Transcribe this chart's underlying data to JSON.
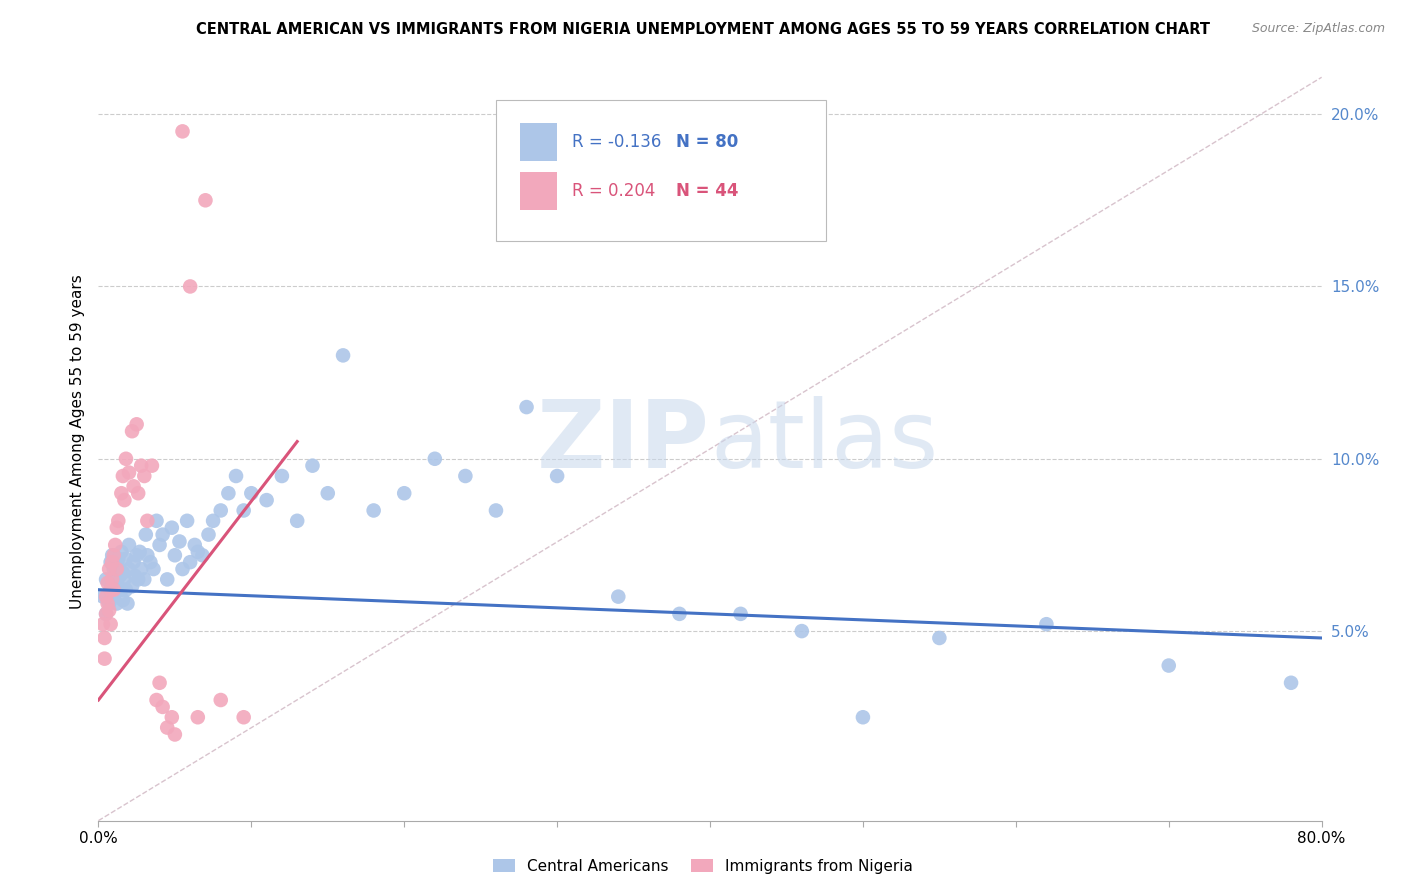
{
  "title": "CENTRAL AMERICAN VS IMMIGRANTS FROM NIGERIA UNEMPLOYMENT AMONG AGES 55 TO 59 YEARS CORRELATION CHART",
  "source": "Source: ZipAtlas.com",
  "ylabel": "Unemployment Among Ages 55 to 59 years",
  "right_yticks": [
    "5.0%",
    "10.0%",
    "15.0%",
    "20.0%"
  ],
  "right_ytick_vals": [
    0.05,
    0.1,
    0.15,
    0.2
  ],
  "xlim": [
    0.0,
    0.8
  ],
  "ylim": [
    -0.005,
    0.215
  ],
  "blue_R": "-0.136",
  "blue_N": "80",
  "pink_R": "0.204",
  "pink_N": "44",
  "blue_color": "#adc6e8",
  "pink_color": "#f2a8bc",
  "blue_line_color": "#4472c4",
  "pink_line_color": "#d9547a",
  "diagonal_color": "#d4bdc8",
  "watermark_zip": "ZIP",
  "watermark_atlas": "atlas",
  "legend_label_blue": "Central Americans",
  "legend_label_pink": "Immigrants from Nigeria",
  "blue_x": [
    0.003,
    0.005,
    0.005,
    0.007,
    0.008,
    0.008,
    0.009,
    0.009,
    0.01,
    0.01,
    0.011,
    0.012,
    0.012,
    0.013,
    0.013,
    0.014,
    0.015,
    0.015,
    0.016,
    0.016,
    0.017,
    0.018,
    0.018,
    0.019,
    0.02,
    0.02,
    0.022,
    0.023,
    0.024,
    0.025,
    0.026,
    0.027,
    0.028,
    0.03,
    0.031,
    0.032,
    0.034,
    0.036,
    0.038,
    0.04,
    0.042,
    0.045,
    0.048,
    0.05,
    0.053,
    0.055,
    0.058,
    0.06,
    0.063,
    0.065,
    0.068,
    0.072,
    0.075,
    0.08,
    0.085,
    0.09,
    0.095,
    0.1,
    0.11,
    0.12,
    0.13,
    0.14,
    0.15,
    0.16,
    0.18,
    0.2,
    0.22,
    0.24,
    0.26,
    0.28,
    0.3,
    0.34,
    0.38,
    0.42,
    0.46,
    0.5,
    0.55,
    0.62,
    0.7,
    0.78
  ],
  "blue_y": [
    0.06,
    0.055,
    0.065,
    0.058,
    0.07,
    0.062,
    0.065,
    0.072,
    0.06,
    0.068,
    0.064,
    0.07,
    0.058,
    0.063,
    0.071,
    0.066,
    0.062,
    0.073,
    0.059,
    0.067,
    0.065,
    0.062,
    0.071,
    0.058,
    0.068,
    0.075,
    0.063,
    0.07,
    0.066,
    0.072,
    0.065,
    0.073,
    0.068,
    0.065,
    0.078,
    0.072,
    0.07,
    0.068,
    0.082,
    0.075,
    0.078,
    0.065,
    0.08,
    0.072,
    0.076,
    0.068,
    0.082,
    0.07,
    0.075,
    0.073,
    0.072,
    0.078,
    0.082,
    0.085,
    0.09,
    0.095,
    0.085,
    0.09,
    0.088,
    0.095,
    0.082,
    0.098,
    0.09,
    0.13,
    0.085,
    0.09,
    0.1,
    0.095,
    0.085,
    0.115,
    0.095,
    0.06,
    0.055,
    0.055,
    0.05,
    0.025,
    0.048,
    0.052,
    0.04,
    0.035
  ],
  "pink_x": [
    0.003,
    0.004,
    0.004,
    0.005,
    0.005,
    0.006,
    0.006,
    0.007,
    0.007,
    0.008,
    0.008,
    0.009,
    0.009,
    0.01,
    0.01,
    0.011,
    0.012,
    0.012,
    0.013,
    0.015,
    0.016,
    0.017,
    0.018,
    0.02,
    0.022,
    0.023,
    0.025,
    0.026,
    0.028,
    0.03,
    0.032,
    0.035,
    0.038,
    0.04,
    0.042,
    0.045,
    0.048,
    0.05,
    0.055,
    0.06,
    0.065,
    0.07,
    0.08,
    0.095
  ],
  "pink_y": [
    0.052,
    0.048,
    0.042,
    0.06,
    0.055,
    0.058,
    0.064,
    0.068,
    0.056,
    0.062,
    0.052,
    0.07,
    0.065,
    0.072,
    0.062,
    0.075,
    0.08,
    0.068,
    0.082,
    0.09,
    0.095,
    0.088,
    0.1,
    0.096,
    0.108,
    0.092,
    0.11,
    0.09,
    0.098,
    0.095,
    0.082,
    0.098,
    0.03,
    0.035,
    0.028,
    0.022,
    0.025,
    0.02,
    0.195,
    0.15,
    0.025,
    0.175,
    0.03,
    0.025
  ]
}
